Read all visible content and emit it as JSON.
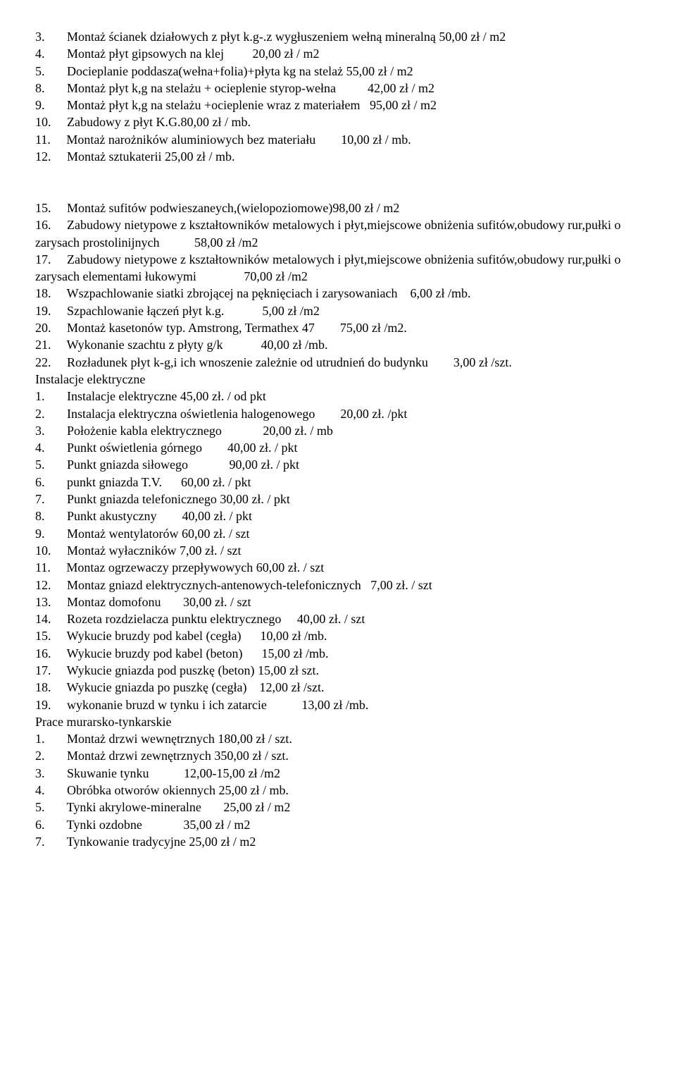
{
  "lines": [
    "3.       Montaż ścianek działowych z płyt k.g-.z wygłuszeniem wełną mineralną 50,00 zł / m2",
    "4.       Montaż płyt gipsowych na klej         20,00 zł / m2",
    "5.       Docieplanie poddasza(wełna+folia)+płyta kg na stelaż 55,00 zł / m2",
    "8.       Montaż płyt k,g na stelażu + ocieplenie styrop-wełna          42,00 zł / m2",
    "9.       Montaż płyt k,g na stelażu +ocieplenie wraz z materiałem   95,00 zł / m2",
    "10.     Zabudowy z płyt K.G.80,00 zł / mb.",
    "11.     Montaż narożników aluminiowych bez materiału        10,00 zł / mb.",
    "12.     Montaż sztukaterii 25,00 zł / mb.",
    "",
    "",
    "15.     Montaż sufitów podwieszaneych,(wielopoziomowe)98,00 zł / m2",
    "16.     Zabudowy nietypowe z kształtowników metalowych i płyt,miejscowe obniżenia sufitów,obudowy rur,pułki o zarysach prostolinijnych           58,00 zł /m2",
    "17.     Zabudowy nietypowe z kształtowników metalowych i płyt,miejscowe obniżenia sufitów,obudowy rur,pułki o zarysach elementami łukowymi               70,00 zł /m2",
    "18.     Wszpachlowanie siatki zbrojącej na pęknięciach i zarysowaniach    6,00 zł /mb.",
    "19.     Szpachlowanie łączeń płyt k.g.            5,00 zł /m2",
    "20.     Montaż kasetonów typ. Amstrong, Termathex 47        75,00 zł /m2.",
    "21.     Wykonanie szachtu z płyty g/k            40,00 zł /mb.",
    "22.     Rozładunek płyt k-g,i ich wnoszenie zależnie od utrudnień do budynku        3,00 zł /szt.",
    "Instalacje elektryczne",
    "1.       Instalacje elektryczne 45,00 zł. / od pkt",
    "2.       Instalacja elektryczna oświetlenia halogenowego        20,00 zł. /pkt",
    "3.       Położenie kabla elektrycznego             20,00 zł. / mb",
    "4.       Punkt oświetlenia górnego        40,00 zł. / pkt",
    "5.       Punkt gniazda siłowego             90,00 zł. / pkt",
    "6.       punkt gniazda T.V.      60,00 zł. / pkt",
    "7.       Punkt gniazda telefonicznego 30,00 zł. / pkt",
    "8.       Punkt akustyczny        40,00 zł. / pkt",
    "9.       Montaż wentylatorów 60,00 zł. / szt",
    "10.     Montaż wyłaczników 7,00 zł. / szt",
    "11.     Montaz ogrzewaczy przepływowych 60,00 zł. / szt",
    "12.     Montaz gniazd elektrycznych-antenowych-telefonicznych   7,00 zł. / szt",
    "13.     Montaz domofonu       30,00 zł. / szt",
    "14.     Rozeta rozdzielacza punktu elektrycznego     40,00 zł. / szt",
    "15.     Wykucie bruzdy pod kabel (cegła)      10,00 zł /mb.",
    "16.     Wykucie bruzdy pod kabel (beton)      15,00 zł /mb.",
    "17.     Wykucie gniazda pod puszkę (beton) 15,00 zł szt.",
    "18.     Wykucie gniazda po puszkę (cegła)    12,00 zł /szt.",
    "19.     wykonanie bruzd w tynku i ich zatarcie           13,00 zł /mb.",
    "Prace murarsko-tynkarskie",
    "1.       Montaż drzwi wewnętrznych 180,00 zł / szt.",
    "2.       Montaż drzwi zewnętrznych 350,00 zł / szt.",
    "3.       Skuwanie tynku           12,00-15,00 zł /m2",
    "4.       Obróbka otworów okiennych 25,00 zł / mb.",
    "5.       Tynki akrylowe-mineralne       25,00 zł / m2",
    "6.       Tynki ozdobne             35,00 zł / m2",
    "7.       Tynkowanie tradycyjne 25,00 zł / m2"
  ]
}
